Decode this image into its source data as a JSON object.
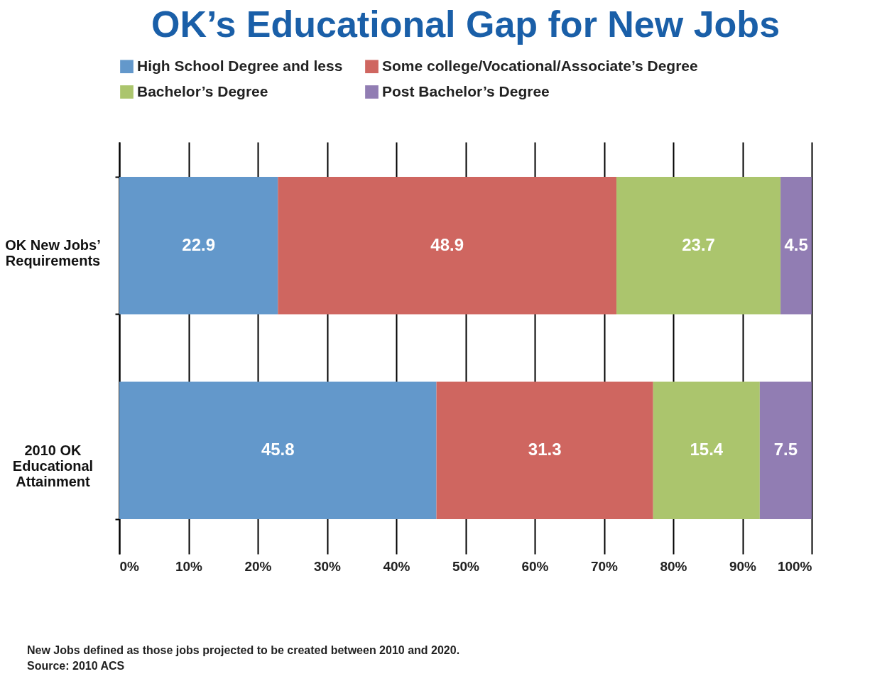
{
  "chart_data": {
    "type": "bar",
    "orientation": "horizontal",
    "stacked": true,
    "title": "OK’s Educational Gap for New Jobs",
    "categories": [
      "OK New Jobs’ Requirements",
      "2010 OK Educational Attainment"
    ],
    "series": [
      {
        "name": "High School Degree and less",
        "color": "#6398cb",
        "values": [
          22.9,
          45.8
        ]
      },
      {
        "name": "Some college/Vocational/Associate’s Degree",
        "color": "#cf6660",
        "values": [
          48.9,
          31.3
        ]
      },
      {
        "name": "Bachelor’s Degree",
        "color": "#abc56d",
        "values": [
          23.7,
          15.4
        ]
      },
      {
        "name": "Post Bachelor’s Degree",
        "color": "#917db3",
        "values": [
          4.5,
          7.5
        ]
      }
    ],
    "xlim": [
      0,
      100
    ],
    "xticks": [
      {
        "value": 0,
        "label": "0%"
      },
      {
        "value": 10,
        "label": "10%"
      },
      {
        "value": 20,
        "label": "20%"
      },
      {
        "value": 30,
        "label": "30%"
      },
      {
        "value": 40,
        "label": "40%"
      },
      {
        "value": 50,
        "label": "50%"
      },
      {
        "value": 60,
        "label": "60%"
      },
      {
        "value": 70,
        "label": "70%"
      },
      {
        "value": 80,
        "label": "80%"
      },
      {
        "value": 90,
        "label": "90%"
      },
      {
        "value": 100,
        "label": "100%"
      }
    ],
    "grid": "x",
    "legend": "top",
    "data_labels": true,
    "annotations": [
      "New Jobs defined as those jobs projected to be created between 2010 and 2020.",
      "Source: 2010 ACS"
    ]
  }
}
